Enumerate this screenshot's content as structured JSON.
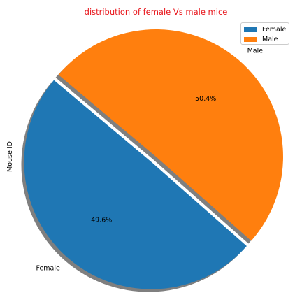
{
  "chart_data": {
    "type": "pie",
    "title": "distribution of female Vs male mice",
    "ylabel": "Mouse ID",
    "slices": [
      {
        "label": "Female",
        "percent": 49.6,
        "percent_label": "49.6%",
        "color": "#1f77b4"
      },
      {
        "label": "Male",
        "percent": 50.4,
        "percent_label": "50.4%",
        "color": "#ff7f0e"
      }
    ],
    "start_angle_deg": 140,
    "exploded_slice": "Female",
    "shadow": true,
    "legend": {
      "placement": "top-right",
      "entries": [
        "Female",
        "Male"
      ]
    }
  },
  "colors": {
    "title": "#e8151b",
    "shadow": "#7f7f7f"
  }
}
